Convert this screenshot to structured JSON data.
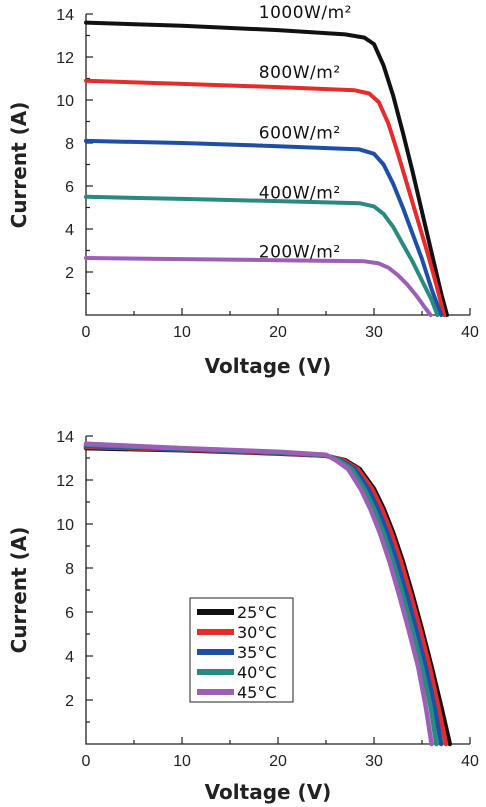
{
  "chart_data": [
    {
      "type": "line",
      "title": "",
      "xlabel": "Voltage (V)",
      "ylabel": "Current (A)",
      "xlim": [
        0,
        40
      ],
      "ylim": [
        0,
        14
      ],
      "xticks": [
        "0",
        "10",
        "20",
        "30",
        "40"
      ],
      "yticks": [
        "2",
        "4",
        "6",
        "8",
        "10",
        "12",
        "14"
      ],
      "legend": "inline",
      "series": [
        {
          "name": "1000W/m²",
          "color": "#111111",
          "label_x": 18,
          "label_y": 14.0,
          "x": [
            0,
            10,
            20,
            27,
            29,
            30,
            31,
            32,
            33,
            34,
            35,
            36,
            37,
            37.6
          ],
          "y": [
            13.6,
            13.45,
            13.25,
            13.05,
            12.9,
            12.6,
            11.6,
            10.2,
            8.5,
            6.7,
            4.8,
            2.9,
            1.0,
            0
          ]
        },
        {
          "name": "800W/m²",
          "color": "#e62b2b",
          "label_x": 18,
          "label_y": 11.2,
          "x": [
            0,
            10,
            20,
            28,
            29.5,
            30.5,
            31.5,
            32.5,
            33.5,
            34.5,
            35.5,
            36.5,
            37.3
          ],
          "y": [
            10.9,
            10.75,
            10.6,
            10.45,
            10.3,
            9.9,
            8.9,
            7.5,
            6.0,
            4.5,
            3.0,
            1.4,
            0
          ]
        },
        {
          "name": "600W/m²",
          "color": "#1f4fa5",
          "label_x": 18,
          "label_y": 8.4,
          "x": [
            0,
            10,
            20,
            28.5,
            30,
            31,
            32,
            33,
            34,
            35,
            36,
            37
          ],
          "y": [
            8.1,
            8.0,
            7.85,
            7.7,
            7.5,
            7.0,
            6.1,
            5.0,
            3.8,
            2.6,
            1.2,
            0
          ]
        },
        {
          "name": "400W/m²",
          "color": "#2a8a80",
          "label_x": 18,
          "label_y": 5.6,
          "x": [
            0,
            10,
            20,
            28.5,
            30,
            31,
            32,
            33,
            34,
            35,
            36,
            36.6
          ],
          "y": [
            5.5,
            5.4,
            5.3,
            5.2,
            5.05,
            4.7,
            4.1,
            3.3,
            2.5,
            1.6,
            0.7,
            0
          ]
        },
        {
          "name": "200W/m²",
          "color": "#9b5fb6",
          "label_x": 18,
          "label_y": 2.85,
          "x": [
            0,
            10,
            20,
            29,
            30.5,
            31.5,
            32.5,
            33.5,
            34.5,
            35.3,
            35.9
          ],
          "y": [
            2.65,
            2.6,
            2.55,
            2.5,
            2.4,
            2.2,
            1.85,
            1.4,
            0.85,
            0.35,
            0
          ]
        }
      ]
    },
    {
      "type": "line",
      "title": "",
      "xlabel": "Voltage (V)",
      "ylabel": "Current (A)",
      "xlim": [
        0,
        40
      ],
      "ylim": [
        0,
        14
      ],
      "xticks": [
        "0",
        "10",
        "20",
        "30",
        "40"
      ],
      "yticks": [
        "2",
        "4",
        "6",
        "8",
        "10",
        "12",
        "14"
      ],
      "legend": "bottom-center",
      "series": [
        {
          "name": "25°C",
          "color": "#111111",
          "x": [
            0,
            10,
            20,
            25,
            27,
            28.5,
            30,
            31,
            32,
            33,
            34,
            35,
            36,
            37,
            37.9
          ],
          "y": [
            13.45,
            13.35,
            13.2,
            13.1,
            12.9,
            12.5,
            11.6,
            10.7,
            9.6,
            8.3,
            6.8,
            5.2,
            3.5,
            1.7,
            0
          ]
        },
        {
          "name": "30°C",
          "color": "#e62b2b",
          "x": [
            0,
            10,
            20,
            25,
            26.8,
            28.3,
            29.8,
            30.8,
            31.8,
            32.8,
            33.8,
            34.8,
            35.8,
            36.7,
            37.5
          ],
          "y": [
            13.5,
            13.38,
            13.22,
            13.1,
            12.9,
            12.5,
            11.6,
            10.7,
            9.6,
            8.3,
            6.8,
            5.2,
            3.5,
            1.7,
            0
          ]
        },
        {
          "name": "35°C",
          "color": "#1f4fa5",
          "x": [
            0,
            10,
            20,
            25,
            26.5,
            28,
            29.4,
            30.4,
            31.4,
            32.4,
            33.4,
            34.4,
            35.4,
            36.3,
            37.0
          ],
          "y": [
            13.55,
            13.4,
            13.24,
            13.12,
            12.9,
            12.5,
            11.6,
            10.7,
            9.6,
            8.3,
            6.8,
            5.2,
            3.5,
            1.7,
            0
          ]
        },
        {
          "name": "40°C",
          "color": "#2a8a80",
          "x": [
            0,
            10,
            20,
            25,
            26.3,
            27.7,
            29.0,
            30.0,
            31.0,
            32.0,
            33.0,
            34.0,
            35.0,
            35.9,
            36.5
          ],
          "y": [
            13.6,
            13.43,
            13.26,
            13.13,
            12.9,
            12.5,
            11.6,
            10.7,
            9.6,
            8.3,
            6.8,
            5.2,
            3.5,
            1.7,
            0
          ]
        },
        {
          "name": "45°C",
          "color": "#9b5fb6",
          "x": [
            0,
            10,
            20,
            25,
            26.0,
            27.3,
            28.6,
            29.6,
            30.6,
            31.6,
            32.6,
            33.6,
            34.6,
            35.4,
            36.0
          ],
          "y": [
            13.65,
            13.45,
            13.28,
            13.15,
            12.9,
            12.5,
            11.6,
            10.7,
            9.6,
            8.3,
            6.8,
            5.2,
            3.5,
            1.7,
            0
          ]
        }
      ]
    }
  ]
}
